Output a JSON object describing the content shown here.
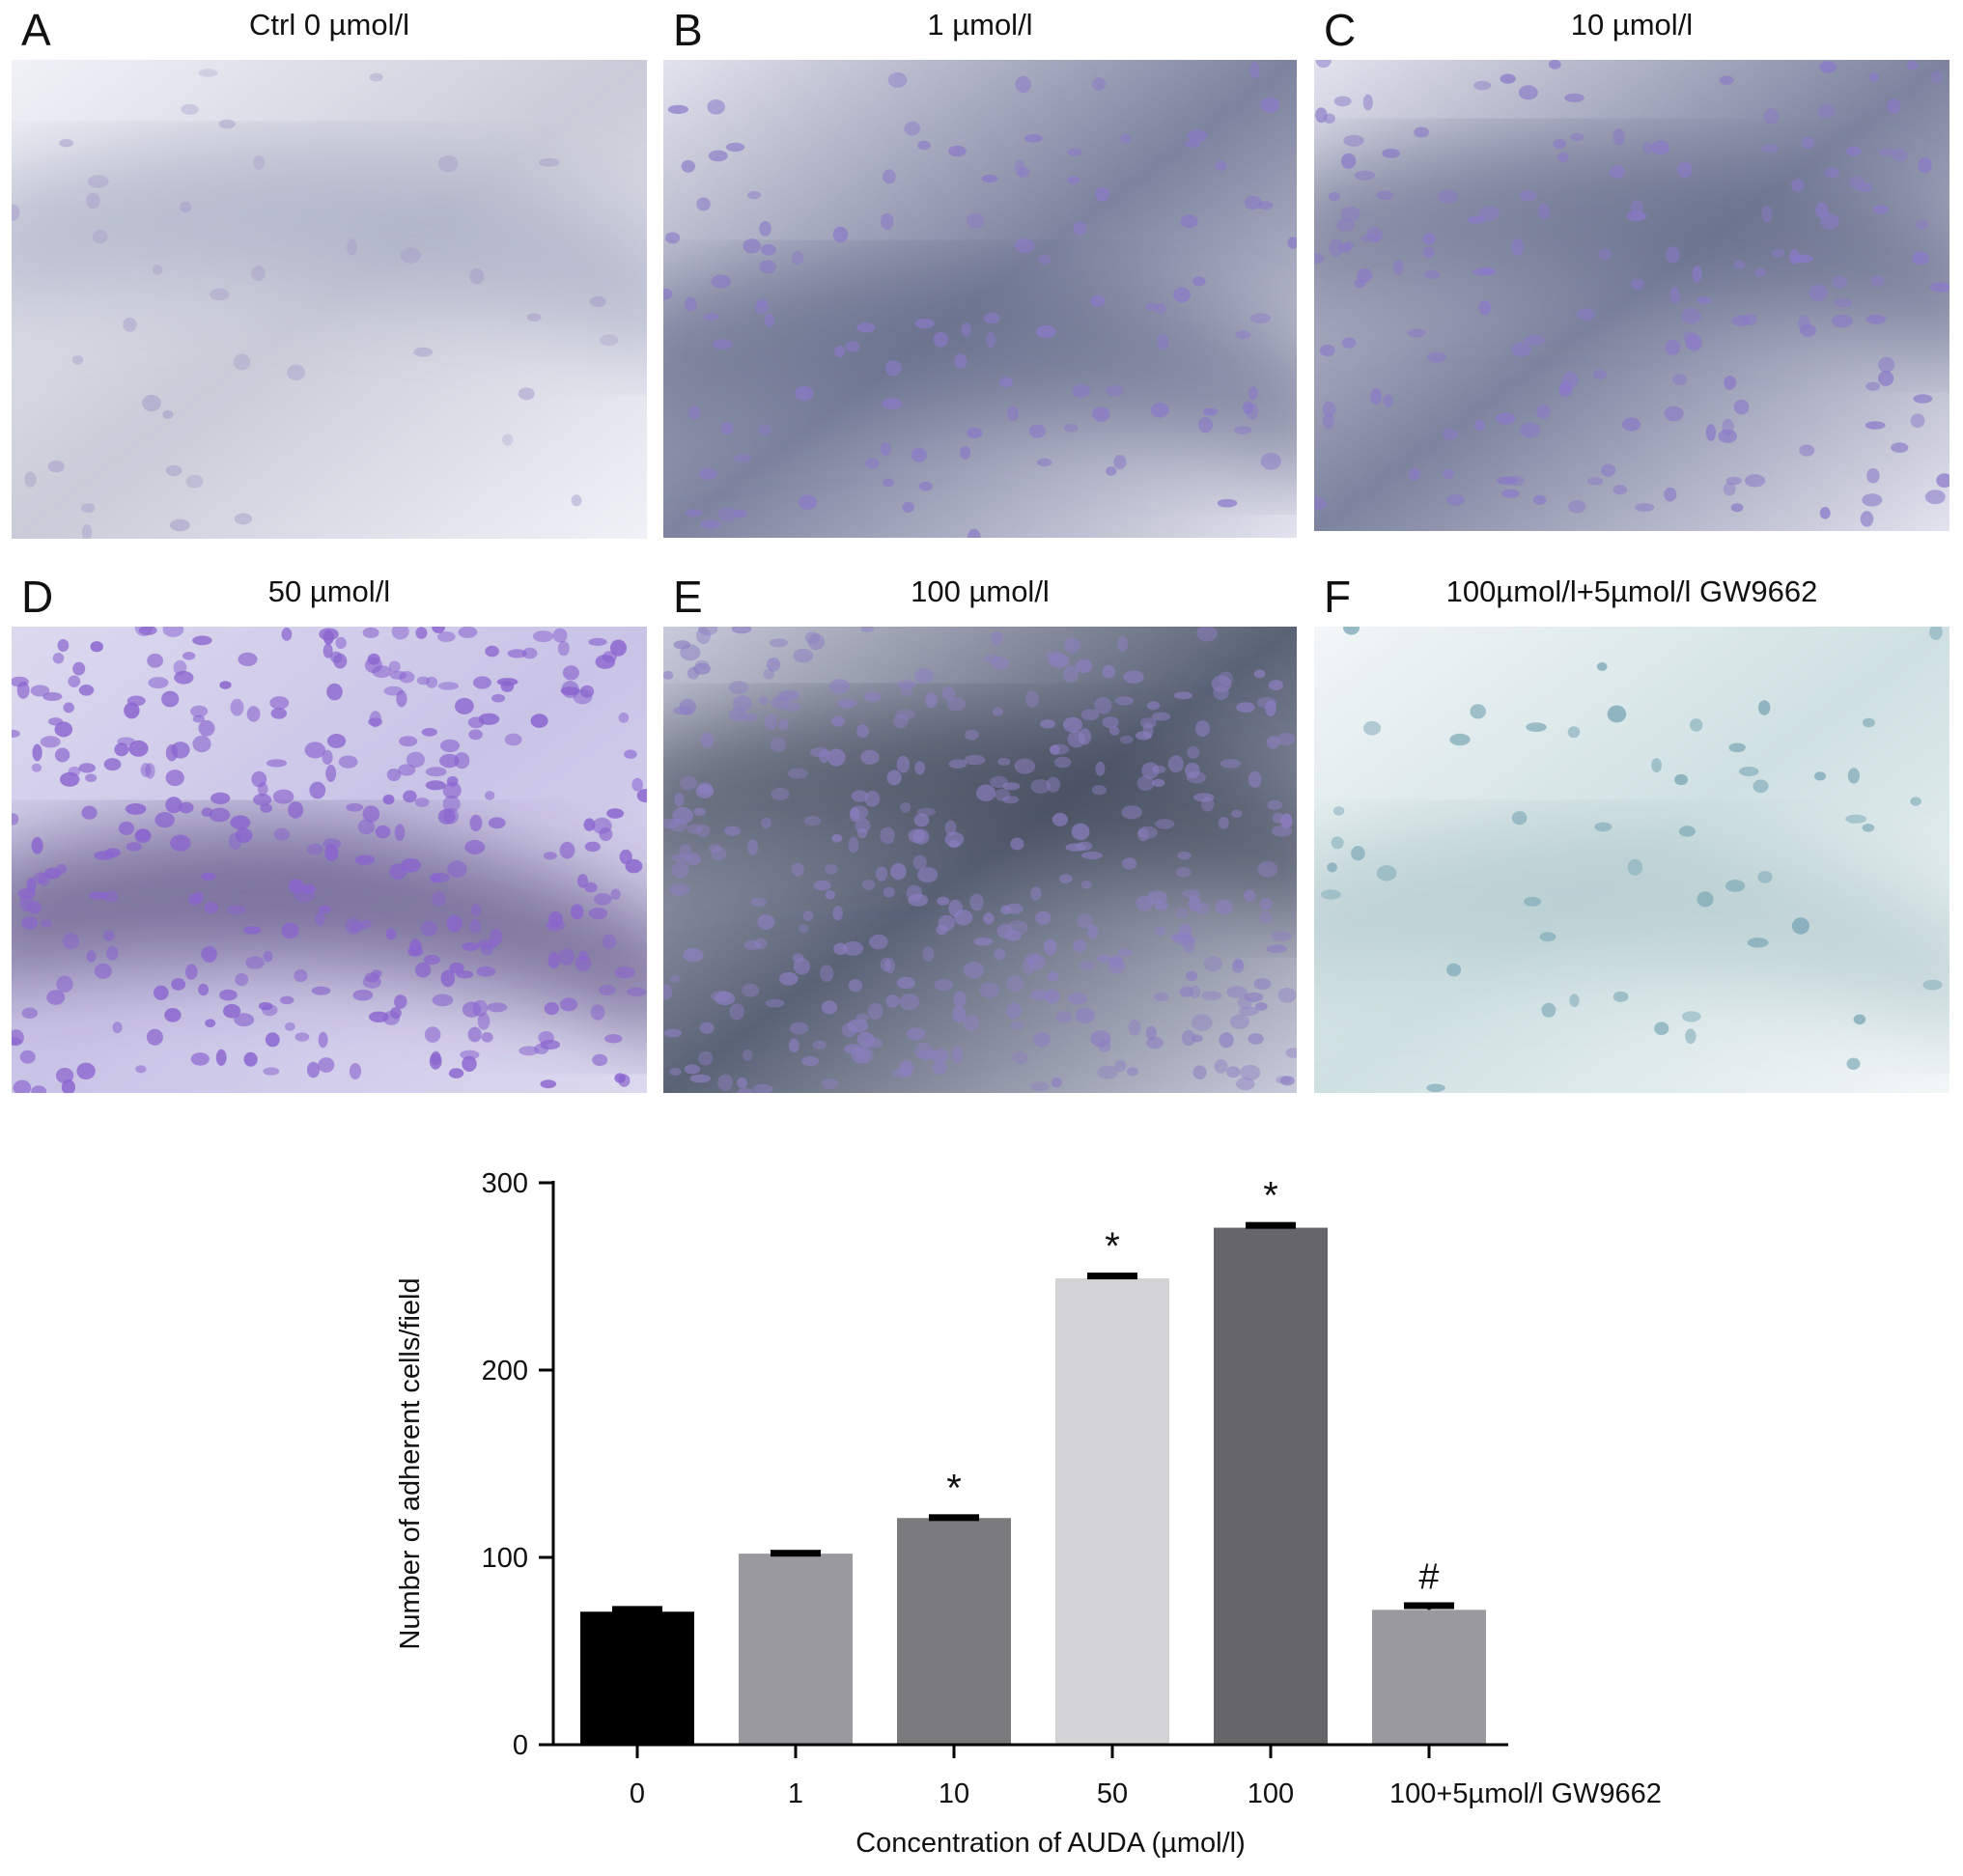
{
  "panels": [
    {
      "letter": "A",
      "caption": "Ctrl 0 µmol/l",
      "tone": "light",
      "density": 40
    },
    {
      "letter": "B",
      "caption": "1 µmol/l",
      "tone": "mid",
      "density": 110
    },
    {
      "letter": "C",
      "caption": "10 µmol/l",
      "tone": "mid",
      "density": 160
    },
    {
      "letter": "D",
      "caption": "50 µmol/l",
      "tone": "purple",
      "density": 330
    },
    {
      "letter": "E",
      "caption": "100 µmol/l",
      "tone": "dark",
      "density": 360
    },
    {
      "letter": "F",
      "caption": "100µmol/l+5µmol/l GW9662",
      "tone": "cyan",
      "density": 50
    }
  ],
  "chart_data": {
    "type": "bar",
    "categories": [
      "0",
      "1",
      "10",
      "50",
      "100",
      "100+5µmol/l GW9662"
    ],
    "values": [
      71,
      102,
      121,
      249,
      276,
      72
    ],
    "errors": [
      2,
      1,
      1,
      2,
      2,
      3
    ],
    "markers": [
      "",
      "",
      "*",
      "*",
      "*",
      "#"
    ],
    "bar_colors": [
      "#000000",
      "#9a9a9e",
      "#7a7a7c",
      "#d4d4d6",
      "#666668",
      "#9a9a9e"
    ],
    "xlabel": "Concentration of AUDA (µmol/l)",
    "ylabel": "Number of adherent cells/field",
    "ylim": [
      0,
      300
    ],
    "yticks": [
      "0",
      "100",
      "200",
      "300"
    ],
    "grid": false
  }
}
